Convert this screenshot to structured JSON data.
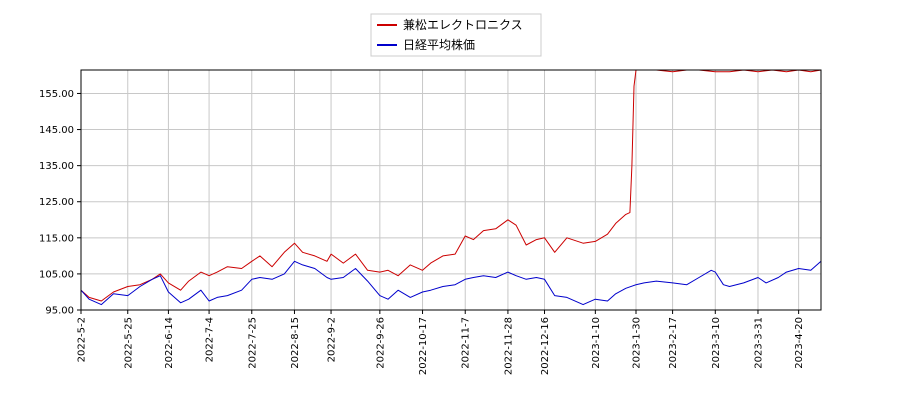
{
  "chart_data": {
    "type": "line",
    "title": "",
    "xlabel": "",
    "ylabel": "",
    "ylim": [
      95,
      161.5
    ],
    "grid": true,
    "legend_placement": "top-center",
    "y_ticks": [
      "95.00",
      "105.00",
      "115.00",
      "125.00",
      "135.00",
      "145.00",
      "155.00"
    ],
    "y_tick_values": [
      95,
      105,
      115,
      125,
      135,
      145,
      155
    ],
    "x_range": [
      "2022-05-02",
      "2023-05-01"
    ],
    "x_ticks": [
      "2022-5-2",
      "2022-5-25",
      "2022-6-14",
      "2022-7-4",
      "2022-7-25",
      "2022-8-15",
      "2022-9-2",
      "2022-9-26",
      "2022-10-17",
      "2022-11-7",
      "2022-11-28",
      "2022-12-16",
      "2023-1-10",
      "2023-1-30",
      "2023-2-17",
      "2023-3-10",
      "2023-3-31",
      "2023-4-20"
    ],
    "x_tick_dates": [
      "2022-05-02",
      "2022-05-25",
      "2022-06-14",
      "2022-07-04",
      "2022-07-25",
      "2022-08-15",
      "2022-09-02",
      "2022-09-26",
      "2022-10-17",
      "2022-11-07",
      "2022-11-28",
      "2022-12-16",
      "2023-01-10",
      "2023-01-30",
      "2023-02-17",
      "2023-03-10",
      "2023-03-31",
      "2023-04-20"
    ],
    "series": [
      {
        "name": "兼松エレクトロニクス",
        "color": "#cc0000",
        "points": [
          [
            "2022-05-02",
            100.5
          ],
          [
            "2022-05-06",
            98.5
          ],
          [
            "2022-05-12",
            97.5
          ],
          [
            "2022-05-18",
            100.0
          ],
          [
            "2022-05-25",
            101.5
          ],
          [
            "2022-05-31",
            102.0
          ],
          [
            "2022-06-06",
            103.5
          ],
          [
            "2022-06-10",
            105.0
          ],
          [
            "2022-06-14",
            102.5
          ],
          [
            "2022-06-20",
            100.5
          ],
          [
            "2022-06-24",
            103.0
          ],
          [
            "2022-06-30",
            105.5
          ],
          [
            "2022-07-04",
            104.5
          ],
          [
            "2022-07-08",
            105.5
          ],
          [
            "2022-07-13",
            107.0
          ],
          [
            "2022-07-20",
            106.5
          ],
          [
            "2022-07-25",
            108.5
          ],
          [
            "2022-07-29",
            110.0
          ],
          [
            "2022-08-04",
            107.0
          ],
          [
            "2022-08-10",
            111.0
          ],
          [
            "2022-08-15",
            113.5
          ],
          [
            "2022-08-19",
            111.0
          ],
          [
            "2022-08-25",
            110.0
          ],
          [
            "2022-08-31",
            108.5
          ],
          [
            "2022-09-02",
            110.5
          ],
          [
            "2022-09-08",
            108.0
          ],
          [
            "2022-09-14",
            110.5
          ],
          [
            "2022-09-20",
            106.0
          ],
          [
            "2022-09-26",
            105.5
          ],
          [
            "2022-09-30",
            106.0
          ],
          [
            "2022-10-05",
            104.5
          ],
          [
            "2022-10-11",
            107.5
          ],
          [
            "2022-10-17",
            106.0
          ],
          [
            "2022-10-21",
            108.0
          ],
          [
            "2022-10-27",
            110.0
          ],
          [
            "2022-11-02",
            110.5
          ],
          [
            "2022-11-07",
            115.5
          ],
          [
            "2022-11-11",
            114.5
          ],
          [
            "2022-11-16",
            117.0
          ],
          [
            "2022-11-22",
            117.5
          ],
          [
            "2022-11-28",
            120.0
          ],
          [
            "2022-12-02",
            118.5
          ],
          [
            "2022-12-07",
            113.0
          ],
          [
            "2022-12-12",
            114.5
          ],
          [
            "2022-12-16",
            115.0
          ],
          [
            "2022-12-21",
            111.0
          ],
          [
            "2022-12-27",
            115.0
          ],
          [
            "2023-01-04",
            113.5
          ],
          [
            "2023-01-10",
            114.0
          ],
          [
            "2023-01-16",
            116.0
          ],
          [
            "2023-01-20",
            119.0
          ],
          [
            "2023-01-25",
            121.5
          ],
          [
            "2023-01-27",
            122.0
          ],
          [
            "2023-01-28",
            135.0
          ],
          [
            "2023-01-29",
            157.0
          ],
          [
            "2023-01-30",
            161.5
          ],
          [
            "2023-02-03",
            161.5
          ],
          [
            "2023-02-09",
            161.5
          ],
          [
            "2023-02-17",
            161.0
          ],
          [
            "2023-02-24",
            161.5
          ],
          [
            "2023-03-02",
            161.5
          ],
          [
            "2023-03-10",
            161.0
          ],
          [
            "2023-03-17",
            161.0
          ],
          [
            "2023-03-24",
            161.5
          ],
          [
            "2023-03-31",
            161.0
          ],
          [
            "2023-04-07",
            161.5
          ],
          [
            "2023-04-14",
            161.0
          ],
          [
            "2023-04-20",
            161.5
          ],
          [
            "2023-04-26",
            161.0
          ],
          [
            "2023-05-01",
            161.5
          ]
        ]
      },
      {
        "name": "日経平均株価",
        "color": "#0000cc",
        "points": [
          [
            "2022-05-02",
            100.5
          ],
          [
            "2022-05-06",
            98.0
          ],
          [
            "2022-05-12",
            96.5
          ],
          [
            "2022-05-18",
            99.5
          ],
          [
            "2022-05-25",
            99.0
          ],
          [
            "2022-05-31",
            101.5
          ],
          [
            "2022-06-06",
            103.5
          ],
          [
            "2022-06-10",
            104.5
          ],
          [
            "2022-06-14",
            100.0
          ],
          [
            "2022-06-20",
            97.0
          ],
          [
            "2022-06-24",
            98.0
          ],
          [
            "2022-06-30",
            100.5
          ],
          [
            "2022-07-04",
            97.5
          ],
          [
            "2022-07-08",
            98.5
          ],
          [
            "2022-07-13",
            99.0
          ],
          [
            "2022-07-20",
            100.5
          ],
          [
            "2022-07-25",
            103.5
          ],
          [
            "2022-07-29",
            104.0
          ],
          [
            "2022-08-04",
            103.5
          ],
          [
            "2022-08-10",
            105.0
          ],
          [
            "2022-08-15",
            108.5
          ],
          [
            "2022-08-19",
            107.5
          ],
          [
            "2022-08-25",
            106.5
          ],
          [
            "2022-08-31",
            104.0
          ],
          [
            "2022-09-02",
            103.5
          ],
          [
            "2022-09-08",
            104.0
          ],
          [
            "2022-09-14",
            106.5
          ],
          [
            "2022-09-20",
            103.0
          ],
          [
            "2022-09-26",
            99.0
          ],
          [
            "2022-09-30",
            98.0
          ],
          [
            "2022-10-05",
            100.5
          ],
          [
            "2022-10-11",
            98.5
          ],
          [
            "2022-10-17",
            100.0
          ],
          [
            "2022-10-21",
            100.5
          ],
          [
            "2022-10-27",
            101.5
          ],
          [
            "2022-11-02",
            102.0
          ],
          [
            "2022-11-07",
            103.5
          ],
          [
            "2022-11-11",
            104.0
          ],
          [
            "2022-11-16",
            104.5
          ],
          [
            "2022-11-22",
            104.0
          ],
          [
            "2022-11-28",
            105.5
          ],
          [
            "2022-12-02",
            104.5
          ],
          [
            "2022-12-07",
            103.5
          ],
          [
            "2022-12-12",
            104.0
          ],
          [
            "2022-12-16",
            103.5
          ],
          [
            "2022-12-21",
            99.0
          ],
          [
            "2022-12-27",
            98.5
          ],
          [
            "2023-01-04",
            96.5
          ],
          [
            "2023-01-10",
            98.0
          ],
          [
            "2023-01-16",
            97.5
          ],
          [
            "2023-01-20",
            99.5
          ],
          [
            "2023-01-25",
            101.0
          ],
          [
            "2023-01-30",
            102.0
          ],
          [
            "2023-02-03",
            102.5
          ],
          [
            "2023-02-09",
            103.0
          ],
          [
            "2023-02-17",
            102.5
          ],
          [
            "2023-02-24",
            102.0
          ],
          [
            "2023-03-02",
            104.0
          ],
          [
            "2023-03-08",
            106.0
          ],
          [
            "2023-03-10",
            105.5
          ],
          [
            "2023-03-14",
            102.0
          ],
          [
            "2023-03-17",
            101.5
          ],
          [
            "2023-03-24",
            102.5
          ],
          [
            "2023-03-31",
            104.0
          ],
          [
            "2023-04-04",
            102.5
          ],
          [
            "2023-04-10",
            104.0
          ],
          [
            "2023-04-14",
            105.5
          ],
          [
            "2023-04-20",
            106.5
          ],
          [
            "2023-04-26",
            106.0
          ],
          [
            "2023-05-01",
            108.5
          ]
        ]
      }
    ]
  }
}
